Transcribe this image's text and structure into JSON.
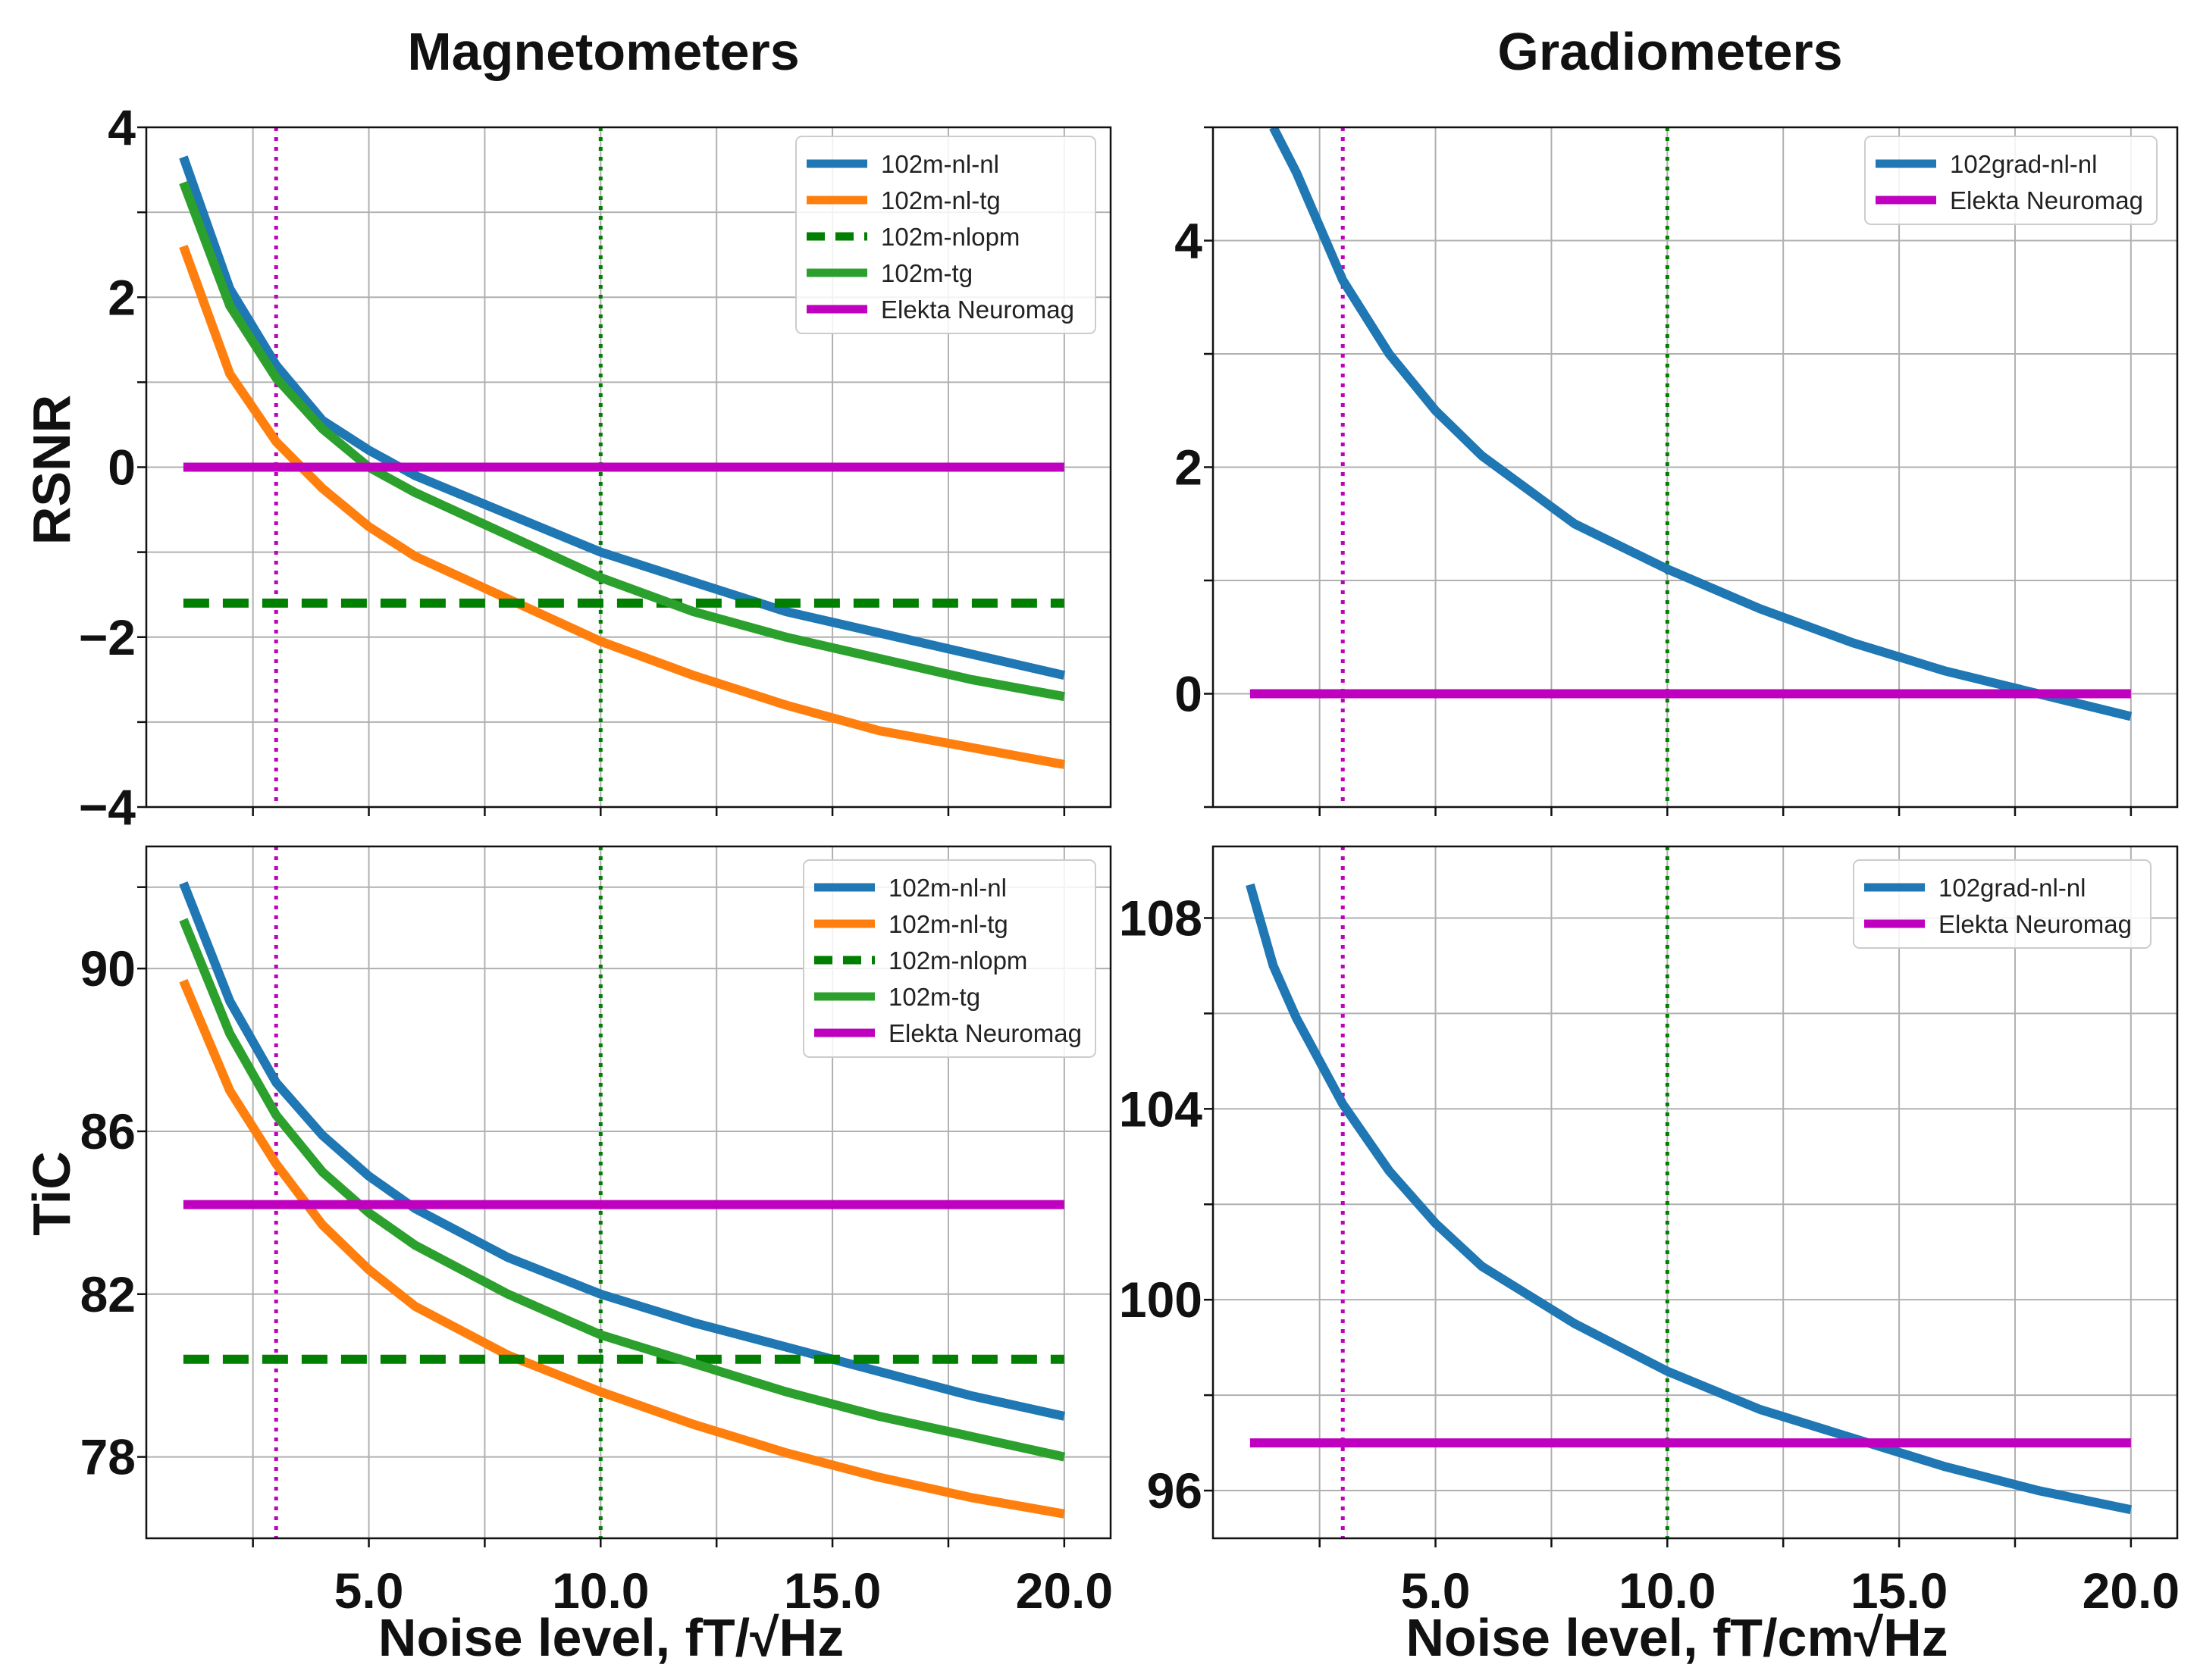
{
  "titles": {
    "magnetometers": "Magnetometers",
    "gradiometers": "Gradiometers"
  },
  "labels": {
    "rsnr": "RSNR",
    "tic": "TiC",
    "x_left": "Noise level, fT/√Hz",
    "x_right": "Noise level, fT/cm√Hz"
  },
  "colors": {
    "blue": "#1f77b4",
    "orange": "#ff7f0e",
    "dark_green": "#007f00",
    "green": "#2ca02c",
    "magenta": "#bf00bf",
    "grid": "#b0b0b0"
  },
  "chart_data": [
    {
      "id": "mag_rsnr",
      "type": "line",
      "title": "Magnetometers",
      "xlabel": "",
      "ylabel": "RSNR",
      "xlim": [
        0.2,
        21
      ],
      "ylim": [
        -4,
        4
      ],
      "x_ticks": [
        2.5,
        5.0,
        7.5,
        10.0,
        12.5,
        15.0,
        17.5,
        20.0
      ],
      "x_tick_labels": [
        "",
        "",
        "",
        "",
        "",
        "",
        "",
        ""
      ],
      "y_ticks": [
        -4,
        -2,
        0,
        2,
        4
      ],
      "y_tick_labels": [
        "−4",
        "−2",
        "0",
        "2",
        "4"
      ],
      "y_grid": [
        -4,
        -3,
        -2,
        -1,
        0,
        1,
        2,
        3,
        4
      ],
      "vlines": [
        {
          "x": 3.0,
          "color": "magenta"
        },
        {
          "x": 10.0,
          "color": "dark_green"
        }
      ],
      "legend": "top-right",
      "series": [
        {
          "name": "102m-nl-nl",
          "color": "blue",
          "style": "solid",
          "x": [
            1,
            2,
            3,
            4,
            5,
            6,
            8,
            10,
            12,
            14,
            16,
            18,
            20
          ],
          "y": [
            3.65,
            2.1,
            1.2,
            0.55,
            0.2,
            -0.1,
            -0.55,
            -1.0,
            -1.35,
            -1.7,
            -1.95,
            -2.2,
            -2.45
          ]
        },
        {
          "name": "102m-nl-tg",
          "color": "orange",
          "style": "solid",
          "x": [
            1,
            2,
            3,
            4,
            5,
            6,
            8,
            10,
            12,
            14,
            16,
            18,
            20
          ],
          "y": [
            2.6,
            1.1,
            0.3,
            -0.25,
            -0.7,
            -1.05,
            -1.55,
            -2.05,
            -2.45,
            -2.8,
            -3.1,
            -3.3,
            -3.5
          ]
        },
        {
          "name": "102m-nlopm",
          "color": "dark_green",
          "style": "dashed",
          "x": [
            1,
            20
          ],
          "y": [
            -1.6,
            -1.6
          ]
        },
        {
          "name": "102m-tg",
          "color": "green",
          "style": "solid",
          "x": [
            1,
            2,
            3,
            4,
            5,
            6,
            8,
            10,
            12,
            14,
            16,
            18,
            20
          ],
          "y": [
            3.35,
            1.9,
            1.05,
            0.45,
            0.0,
            -0.3,
            -0.8,
            -1.3,
            -1.7,
            -2.0,
            -2.25,
            -2.5,
            -2.7
          ]
        },
        {
          "name": "Elekta Neuromag",
          "color": "magenta",
          "style": "solid",
          "x": [
            1,
            20
          ],
          "y": [
            0,
            0
          ]
        }
      ]
    },
    {
      "id": "grad_rsnr",
      "type": "line",
      "title": "Gradiometers",
      "xlabel": "",
      "ylabel": "",
      "xlim": [
        0.2,
        21
      ],
      "ylim": [
        -1,
        5
      ],
      "x_ticks": [
        2.5,
        5.0,
        7.5,
        10.0,
        12.5,
        15.0,
        17.5,
        20.0
      ],
      "x_tick_labels": [
        "",
        "",
        "",
        "",
        "",
        "",
        "",
        ""
      ],
      "y_ticks": [
        0,
        2,
        4
      ],
      "y_tick_labels": [
        "0",
        "2",
        "4"
      ],
      "y_grid": [
        -1,
        0,
        1,
        2,
        3,
        4,
        5
      ],
      "vlines": [
        {
          "x": 3.0,
          "color": "magenta"
        },
        {
          "x": 10.0,
          "color": "dark_green"
        }
      ],
      "legend": "top-right",
      "series": [
        {
          "name": "102grad-nl-nl",
          "color": "blue",
          "style": "solid",
          "x": [
            1.5,
            2,
            3,
            4,
            5,
            6,
            8,
            10,
            12,
            14,
            16,
            18,
            20
          ],
          "y": [
            5.0,
            4.6,
            3.65,
            3.0,
            2.5,
            2.1,
            1.5,
            1.1,
            0.75,
            0.45,
            0.2,
            0.0,
            -0.2
          ]
        },
        {
          "name": "Elekta Neuromag",
          "color": "magenta",
          "style": "solid",
          "x": [
            1,
            20
          ],
          "y": [
            0,
            0
          ]
        }
      ]
    },
    {
      "id": "mag_tic",
      "type": "line",
      "title": "",
      "xlabel": "Noise level, fT/√Hz",
      "ylabel": "TiC",
      "xlim": [
        0.2,
        21
      ],
      "ylim": [
        76,
        93
      ],
      "x_ticks": [
        2.5,
        5.0,
        7.5,
        10.0,
        12.5,
        15.0,
        17.5,
        20.0
      ],
      "x_tick_labels": [
        "",
        "5.0",
        "",
        "10.0",
        "",
        "15.0",
        "",
        "20.0"
      ],
      "y_ticks": [
        78,
        82,
        86,
        90
      ],
      "y_tick_labels": [
        "78",
        "82",
        "86",
        "90"
      ],
      "y_grid": [
        78,
        82,
        86,
        90,
        92
      ],
      "vlines": [
        {
          "x": 3.0,
          "color": "magenta"
        },
        {
          "x": 10.0,
          "color": "dark_green"
        }
      ],
      "legend": "top-right",
      "series": [
        {
          "name": "102m-nl-nl",
          "color": "blue",
          "style": "solid",
          "x": [
            1,
            2,
            3,
            4,
            5,
            6,
            8,
            10,
            12,
            14,
            16,
            18,
            20
          ],
          "y": [
            92.1,
            89.2,
            87.2,
            85.9,
            84.9,
            84.1,
            82.9,
            82.0,
            81.3,
            80.7,
            80.1,
            79.5,
            79.0
          ]
        },
        {
          "name": "102m-nl-tg",
          "color": "orange",
          "style": "solid",
          "x": [
            1,
            2,
            3,
            4,
            5,
            6,
            8,
            10,
            12,
            14,
            16,
            18,
            20
          ],
          "y": [
            89.7,
            87.0,
            85.2,
            83.7,
            82.6,
            81.7,
            80.5,
            79.6,
            78.8,
            78.1,
            77.5,
            77.0,
            76.6
          ]
        },
        {
          "name": "102m-nlopm",
          "color": "dark_green",
          "style": "dashed",
          "x": [
            1,
            20
          ],
          "y": [
            80.4,
            80.4
          ]
        },
        {
          "name": "102m-tg",
          "color": "green",
          "style": "solid",
          "x": [
            1,
            2,
            3,
            4,
            5,
            6,
            8,
            10,
            12,
            14,
            16,
            18,
            20
          ],
          "y": [
            91.2,
            88.4,
            86.4,
            85.0,
            84.0,
            83.2,
            82.0,
            81.0,
            80.3,
            79.6,
            79.0,
            78.5,
            78.0
          ]
        },
        {
          "name": "Elekta Neuromag",
          "color": "magenta",
          "style": "solid",
          "x": [
            1,
            20
          ],
          "y": [
            84.2,
            84.2
          ]
        }
      ]
    },
    {
      "id": "grad_tic",
      "type": "line",
      "title": "",
      "xlabel": "Noise level, fT/cm√Hz",
      "ylabel": "",
      "xlim": [
        0.2,
        21
      ],
      "ylim": [
        95,
        109.5
      ],
      "x_ticks": [
        2.5,
        5.0,
        7.5,
        10.0,
        12.5,
        15.0,
        17.5,
        20.0
      ],
      "x_tick_labels": [
        "",
        "5.0",
        "",
        "10.0",
        "",
        "15.0",
        "",
        "20.0"
      ],
      "y_ticks": [
        96,
        100,
        104,
        108
      ],
      "y_tick_labels": [
        "96",
        "100",
        "104",
        "108"
      ],
      "y_grid": [
        96,
        98,
        100,
        102,
        104,
        106,
        108
      ],
      "vlines": [
        {
          "x": 3.0,
          "color": "magenta"
        },
        {
          "x": 10.0,
          "color": "dark_green"
        }
      ],
      "legend": "top-right",
      "series": [
        {
          "name": "102grad-nl-nl",
          "color": "blue",
          "style": "solid",
          "x": [
            1,
            1.5,
            2,
            3,
            4,
            5,
            6,
            8,
            10,
            12,
            14,
            16,
            18,
            20
          ],
          "y": [
            108.7,
            107.0,
            105.9,
            104.1,
            102.7,
            101.6,
            100.7,
            99.5,
            98.5,
            97.7,
            97.1,
            96.5,
            96.0,
            95.6
          ]
        },
        {
          "name": "Elekta Neuromag",
          "color": "magenta",
          "style": "solid",
          "x": [
            1,
            20
          ],
          "y": [
            97.0,
            97.0
          ]
        }
      ]
    }
  ]
}
